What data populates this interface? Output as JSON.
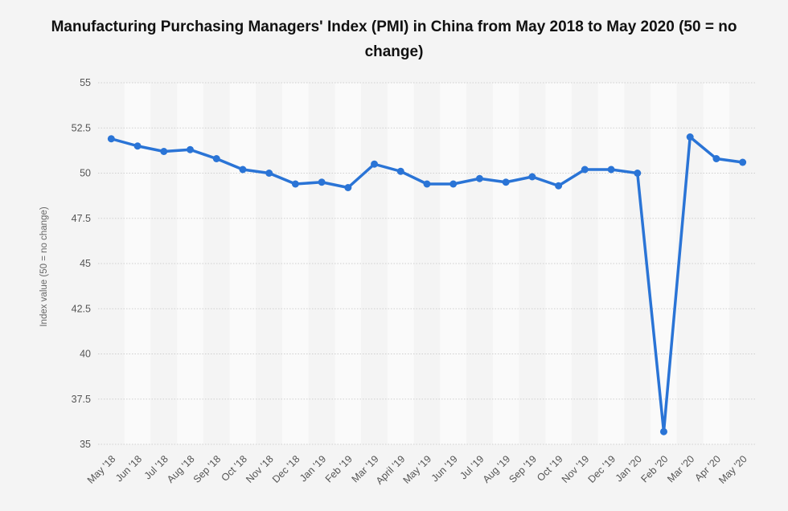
{
  "chart_data": {
    "type": "line",
    "title": "Manufacturing Purchasing Managers' Index (PMI) in China from May 2018 to May 2020 (50 = no change)",
    "xlabel": "",
    "ylabel": "Index value (50 = no change)",
    "ylim": [
      35,
      55
    ],
    "yticks": [
      35,
      37.5,
      40,
      42.5,
      45,
      47.5,
      50,
      52.5,
      55
    ],
    "ytick_labels": [
      "35",
      "37.5",
      "40",
      "42.5",
      "45",
      "47.5",
      "50",
      "52.5",
      "55"
    ],
    "grid": true,
    "categories": [
      "May '18",
      "Jun '18",
      "Jul '18",
      "Aug '18",
      "Sep '18",
      "Oct '18",
      "Nov '18",
      "Dec '18",
      "Jan '19",
      "Feb '19",
      "Mar '19",
      "April '19",
      "May '19",
      "Jun '19",
      "Jul '19",
      "Aug '19",
      "Sep '19",
      "Oct '19",
      "Nov '19",
      "Dec '19",
      "Jan '20",
      "Feb '20",
      "Mar '20",
      "Apr '20",
      "May '20"
    ],
    "series": [
      {
        "values": [
          51.9,
          51.5,
          51.2,
          51.3,
          50.8,
          50.2,
          50.0,
          49.4,
          49.5,
          49.2,
          50.5,
          50.1,
          49.4,
          49.4,
          49.7,
          49.5,
          49.8,
          49.3,
          50.2,
          50.2,
          50.0,
          35.7,
          52.0,
          50.8,
          50.6
        ],
        "color": "#2a74d6"
      }
    ]
  }
}
